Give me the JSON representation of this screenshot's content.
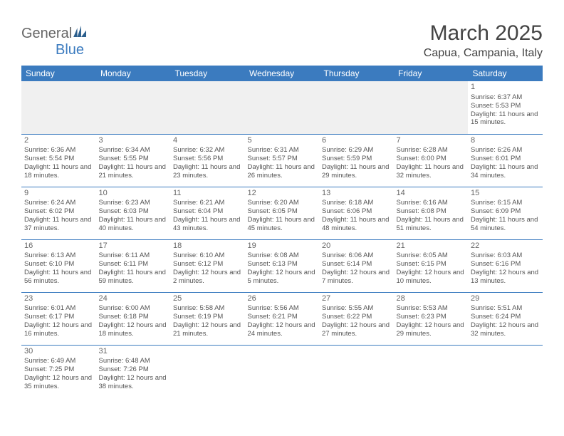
{
  "brand": {
    "part1": "General",
    "part2": "Blue"
  },
  "title": "March 2025",
  "location": "Capua, Campania, Italy",
  "colors": {
    "header_bg": "#3b7bbf",
    "text": "#555555",
    "title": "#444444"
  },
  "daynames": [
    "Sunday",
    "Monday",
    "Tuesday",
    "Wednesday",
    "Thursday",
    "Friday",
    "Saturday"
  ],
  "weeks": [
    [
      null,
      null,
      null,
      null,
      null,
      null,
      {
        "n": "1",
        "sr": "Sunrise: 6:37 AM",
        "ss": "Sunset: 5:53 PM",
        "dl": "Daylight: 11 hours and 15 minutes."
      }
    ],
    [
      {
        "n": "2",
        "sr": "Sunrise: 6:36 AM",
        "ss": "Sunset: 5:54 PM",
        "dl": "Daylight: 11 hours and 18 minutes."
      },
      {
        "n": "3",
        "sr": "Sunrise: 6:34 AM",
        "ss": "Sunset: 5:55 PM",
        "dl": "Daylight: 11 hours and 21 minutes."
      },
      {
        "n": "4",
        "sr": "Sunrise: 6:32 AM",
        "ss": "Sunset: 5:56 PM",
        "dl": "Daylight: 11 hours and 23 minutes."
      },
      {
        "n": "5",
        "sr": "Sunrise: 6:31 AM",
        "ss": "Sunset: 5:57 PM",
        "dl": "Daylight: 11 hours and 26 minutes."
      },
      {
        "n": "6",
        "sr": "Sunrise: 6:29 AM",
        "ss": "Sunset: 5:59 PM",
        "dl": "Daylight: 11 hours and 29 minutes."
      },
      {
        "n": "7",
        "sr": "Sunrise: 6:28 AM",
        "ss": "Sunset: 6:00 PM",
        "dl": "Daylight: 11 hours and 32 minutes."
      },
      {
        "n": "8",
        "sr": "Sunrise: 6:26 AM",
        "ss": "Sunset: 6:01 PM",
        "dl": "Daylight: 11 hours and 34 minutes."
      }
    ],
    [
      {
        "n": "9",
        "sr": "Sunrise: 6:24 AM",
        "ss": "Sunset: 6:02 PM",
        "dl": "Daylight: 11 hours and 37 minutes."
      },
      {
        "n": "10",
        "sr": "Sunrise: 6:23 AM",
        "ss": "Sunset: 6:03 PM",
        "dl": "Daylight: 11 hours and 40 minutes."
      },
      {
        "n": "11",
        "sr": "Sunrise: 6:21 AM",
        "ss": "Sunset: 6:04 PM",
        "dl": "Daylight: 11 hours and 43 minutes."
      },
      {
        "n": "12",
        "sr": "Sunrise: 6:20 AM",
        "ss": "Sunset: 6:05 PM",
        "dl": "Daylight: 11 hours and 45 minutes."
      },
      {
        "n": "13",
        "sr": "Sunrise: 6:18 AM",
        "ss": "Sunset: 6:06 PM",
        "dl": "Daylight: 11 hours and 48 minutes."
      },
      {
        "n": "14",
        "sr": "Sunrise: 6:16 AM",
        "ss": "Sunset: 6:08 PM",
        "dl": "Daylight: 11 hours and 51 minutes."
      },
      {
        "n": "15",
        "sr": "Sunrise: 6:15 AM",
        "ss": "Sunset: 6:09 PM",
        "dl": "Daylight: 11 hours and 54 minutes."
      }
    ],
    [
      {
        "n": "16",
        "sr": "Sunrise: 6:13 AM",
        "ss": "Sunset: 6:10 PM",
        "dl": "Daylight: 11 hours and 56 minutes."
      },
      {
        "n": "17",
        "sr": "Sunrise: 6:11 AM",
        "ss": "Sunset: 6:11 PM",
        "dl": "Daylight: 11 hours and 59 minutes."
      },
      {
        "n": "18",
        "sr": "Sunrise: 6:10 AM",
        "ss": "Sunset: 6:12 PM",
        "dl": "Daylight: 12 hours and 2 minutes."
      },
      {
        "n": "19",
        "sr": "Sunrise: 6:08 AM",
        "ss": "Sunset: 6:13 PM",
        "dl": "Daylight: 12 hours and 5 minutes."
      },
      {
        "n": "20",
        "sr": "Sunrise: 6:06 AM",
        "ss": "Sunset: 6:14 PM",
        "dl": "Daylight: 12 hours and 7 minutes."
      },
      {
        "n": "21",
        "sr": "Sunrise: 6:05 AM",
        "ss": "Sunset: 6:15 PM",
        "dl": "Daylight: 12 hours and 10 minutes."
      },
      {
        "n": "22",
        "sr": "Sunrise: 6:03 AM",
        "ss": "Sunset: 6:16 PM",
        "dl": "Daylight: 12 hours and 13 minutes."
      }
    ],
    [
      {
        "n": "23",
        "sr": "Sunrise: 6:01 AM",
        "ss": "Sunset: 6:17 PM",
        "dl": "Daylight: 12 hours and 16 minutes."
      },
      {
        "n": "24",
        "sr": "Sunrise: 6:00 AM",
        "ss": "Sunset: 6:18 PM",
        "dl": "Daylight: 12 hours and 18 minutes."
      },
      {
        "n": "25",
        "sr": "Sunrise: 5:58 AM",
        "ss": "Sunset: 6:19 PM",
        "dl": "Daylight: 12 hours and 21 minutes."
      },
      {
        "n": "26",
        "sr": "Sunrise: 5:56 AM",
        "ss": "Sunset: 6:21 PM",
        "dl": "Daylight: 12 hours and 24 minutes."
      },
      {
        "n": "27",
        "sr": "Sunrise: 5:55 AM",
        "ss": "Sunset: 6:22 PM",
        "dl": "Daylight: 12 hours and 27 minutes."
      },
      {
        "n": "28",
        "sr": "Sunrise: 5:53 AM",
        "ss": "Sunset: 6:23 PM",
        "dl": "Daylight: 12 hours and 29 minutes."
      },
      {
        "n": "29",
        "sr": "Sunrise: 5:51 AM",
        "ss": "Sunset: 6:24 PM",
        "dl": "Daylight: 12 hours and 32 minutes."
      }
    ],
    [
      {
        "n": "30",
        "sr": "Sunrise: 6:49 AM",
        "ss": "Sunset: 7:25 PM",
        "dl": "Daylight: 12 hours and 35 minutes."
      },
      {
        "n": "31",
        "sr": "Sunrise: 6:48 AM",
        "ss": "Sunset: 7:26 PM",
        "dl": "Daylight: 12 hours and 38 minutes."
      },
      null,
      null,
      null,
      null,
      null
    ]
  ]
}
